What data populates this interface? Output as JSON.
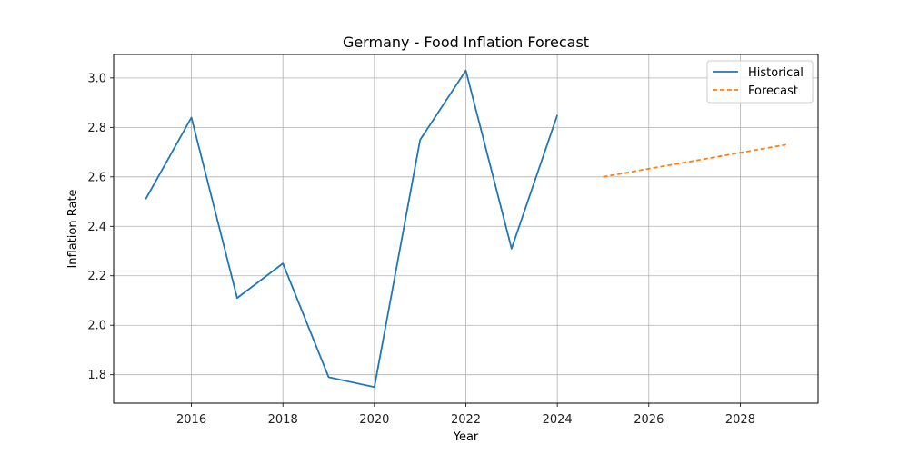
{
  "chart_data": {
    "type": "line",
    "title": "Germany - Food Inflation Forecast",
    "xlabel": "Year",
    "ylabel": "Inflation Rate",
    "xlim": [
      2014.3,
      2029.7
    ],
    "ylim": [
      1.685,
      3.095
    ],
    "x_ticks": [
      2016,
      2018,
      2020,
      2022,
      2024,
      2026,
      2028
    ],
    "y_ticks": [
      1.8,
      2.0,
      2.2,
      2.4,
      2.6,
      2.8,
      3.0
    ],
    "grid": true,
    "legend_position": "top-right",
    "series": [
      {
        "name": "Historical",
        "style": "solid",
        "color": "#1f77b4",
        "x": [
          2015,
          2016,
          2017,
          2018,
          2019,
          2020,
          2021,
          2022,
          2023,
          2024
        ],
        "y": [
          2.51,
          2.84,
          2.11,
          2.25,
          1.79,
          1.75,
          2.75,
          3.03,
          2.31,
          2.85
        ]
      },
      {
        "name": "Forecast",
        "style": "dashed",
        "color": "#ff7f0e",
        "x": [
          2025,
          2026,
          2027,
          2028,
          2029
        ],
        "y": [
          2.6,
          2.633,
          2.665,
          2.698,
          2.73
        ]
      }
    ]
  }
}
